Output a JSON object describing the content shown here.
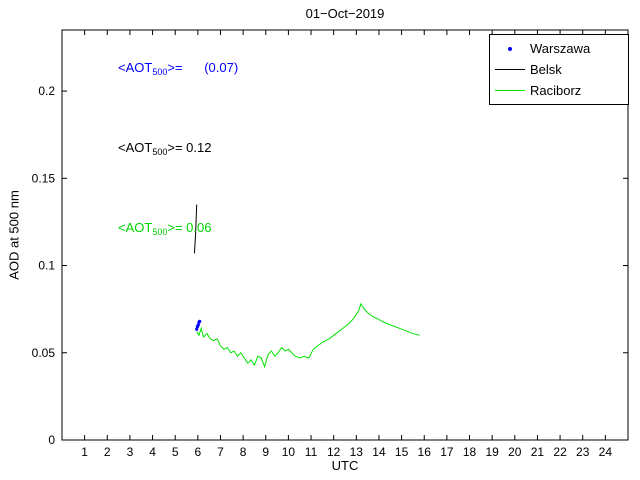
{
  "title": "01−Oct−2019",
  "annotations": [
    {
      "pre": "<AOT",
      "sub": "500",
      "post": ">=      (0.07)",
      "color": "#0000ff"
    },
    {
      "pre": "<AOT",
      "sub": "500",
      "post": ">= 0.12",
      "color": "#000000"
    },
    {
      "pre": "<AOT",
      "sub": "500",
      "post": ">= 0.06",
      "color": "#00d400"
    }
  ],
  "chart_data": {
    "type": "line",
    "title": "01−Oct−2019",
    "xlabel": "UTC",
    "ylabel": "AOD at 500 nm",
    "xlim": [
      0,
      25
    ],
    "ylim": [
      0,
      0.235
    ],
    "xticks": [
      1,
      2,
      3,
      4,
      5,
      6,
      7,
      8,
      9,
      10,
      11,
      12,
      13,
      14,
      15,
      16,
      17,
      18,
      19,
      20,
      21,
      22,
      23,
      24
    ],
    "yticks": [
      0,
      0.05,
      0.1,
      0.15,
      0.2
    ],
    "ytick_labels": [
      "0",
      "0.05",
      "0.1",
      "0.15",
      "0.2"
    ],
    "grid": false,
    "legend_position": "top-right",
    "series": [
      {
        "name": "Warszawa",
        "type": "scatter",
        "color": "#0000ff",
        "points": [
          [
            5.95,
            0.0635
          ],
          [
            5.98,
            0.065
          ],
          [
            6.02,
            0.066
          ],
          [
            6.05,
            0.0675
          ],
          [
            6.08,
            0.068
          ]
        ]
      },
      {
        "name": "Belsk",
        "type": "line",
        "color": "#000000",
        "points": [
          [
            5.85,
            0.107
          ],
          [
            5.9,
            0.118
          ],
          [
            5.95,
            0.135
          ]
        ]
      },
      {
        "name": "Raciborz",
        "type": "line",
        "color": "#00e400",
        "points": [
          [
            5.95,
            0.062
          ],
          [
            6.05,
            0.06
          ],
          [
            6.15,
            0.064
          ],
          [
            6.25,
            0.059
          ],
          [
            6.4,
            0.061
          ],
          [
            6.55,
            0.058
          ],
          [
            6.7,
            0.057
          ],
          [
            6.85,
            0.058
          ],
          [
            7.0,
            0.054
          ],
          [
            7.15,
            0.052
          ],
          [
            7.3,
            0.053
          ],
          [
            7.45,
            0.05
          ],
          [
            7.6,
            0.051
          ],
          [
            7.75,
            0.048
          ],
          [
            7.9,
            0.05
          ],
          [
            8.05,
            0.047
          ],
          [
            8.2,
            0.044
          ],
          [
            8.35,
            0.046
          ],
          [
            8.5,
            0.043
          ],
          [
            8.65,
            0.048
          ],
          [
            8.8,
            0.047
          ],
          [
            8.95,
            0.042
          ],
          [
            9.1,
            0.049
          ],
          [
            9.25,
            0.051
          ],
          [
            9.4,
            0.048
          ],
          [
            9.55,
            0.05
          ],
          [
            9.7,
            0.053
          ],
          [
            9.85,
            0.051
          ],
          [
            10.0,
            0.052
          ],
          [
            10.15,
            0.05
          ],
          [
            10.3,
            0.048
          ],
          [
            10.5,
            0.047
          ],
          [
            10.7,
            0.048
          ],
          [
            10.9,
            0.047
          ],
          [
            11.1,
            0.052
          ],
          [
            11.3,
            0.054
          ],
          [
            11.5,
            0.056
          ],
          [
            11.8,
            0.058
          ],
          [
            12.1,
            0.061
          ],
          [
            12.4,
            0.064
          ],
          [
            12.7,
            0.067
          ],
          [
            12.9,
            0.07
          ],
          [
            13.1,
            0.074
          ],
          [
            13.2,
            0.078
          ],
          [
            13.35,
            0.075
          ],
          [
            13.5,
            0.073
          ],
          [
            13.7,
            0.071
          ],
          [
            14.0,
            0.069
          ],
          [
            14.3,
            0.067
          ],
          [
            14.7,
            0.065
          ],
          [
            15.1,
            0.063
          ],
          [
            15.5,
            0.061
          ],
          [
            15.8,
            0.06
          ]
        ]
      }
    ]
  }
}
